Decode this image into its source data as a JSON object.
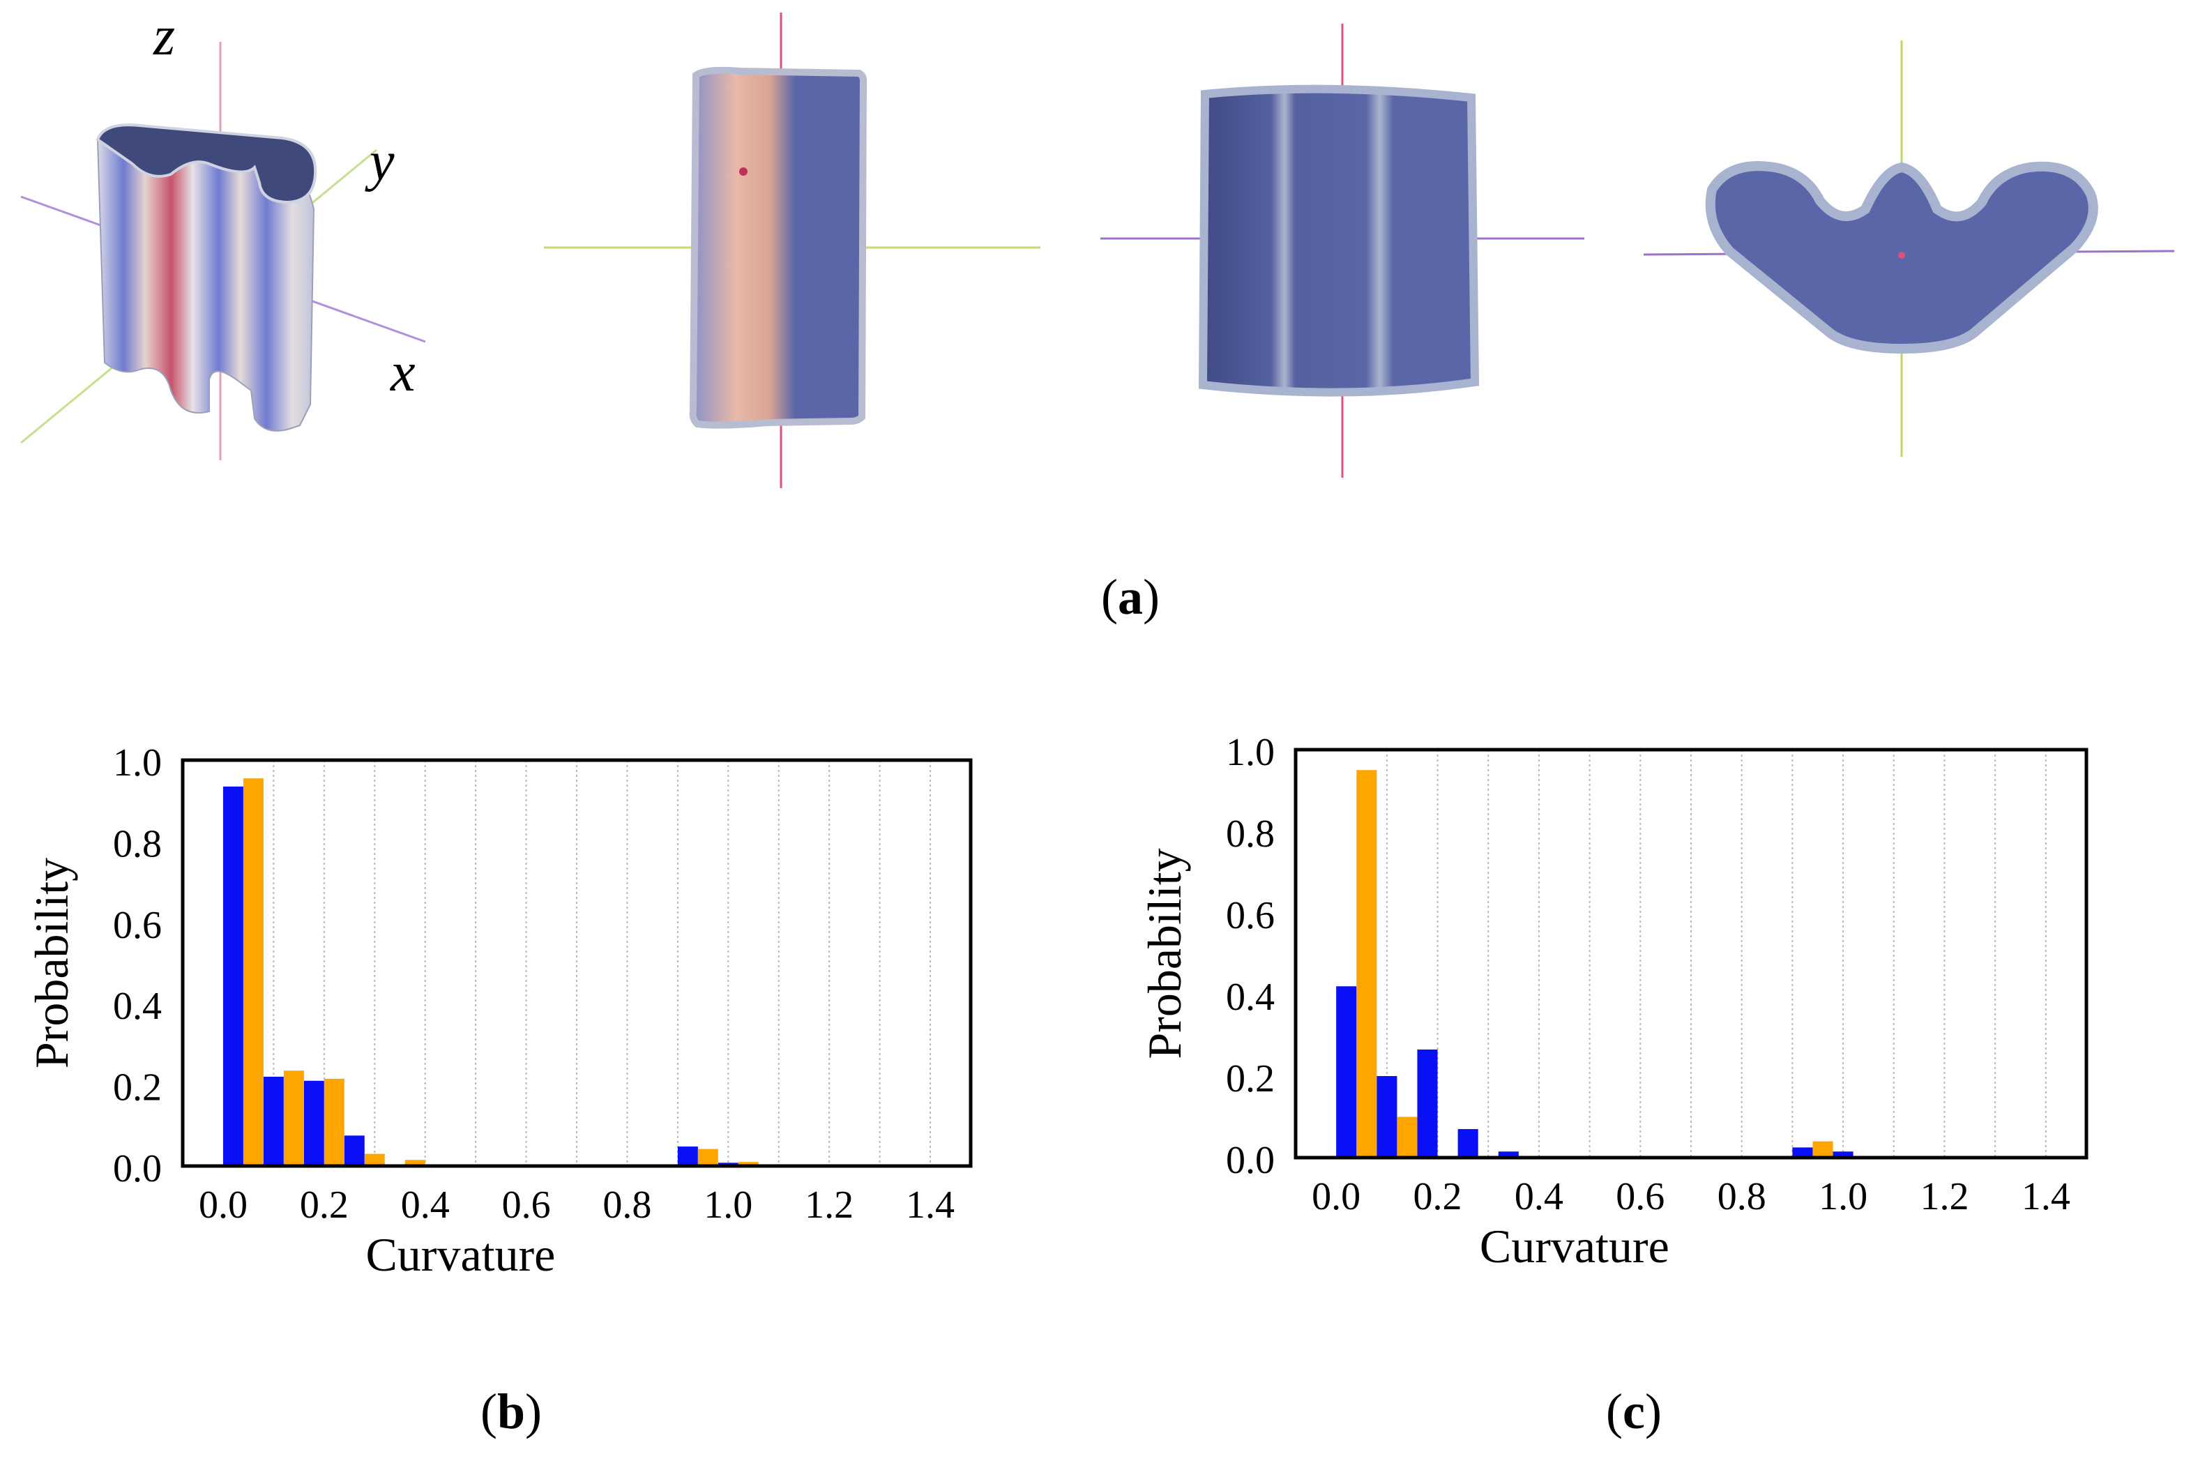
{
  "panel_a": {
    "label": "a",
    "axis_labels": {
      "z": "z",
      "y": "y",
      "x": "x"
    },
    "colors": {
      "surface_blue": "#5b66a8",
      "edge": "#a8b4cf",
      "stripe_red": "#c0305a",
      "axis_red": "#e0507a",
      "axis_green": "#b8d860",
      "axis_purple": "#a070d0"
    }
  },
  "panel_b_label": "b",
  "panel_c_label": "c",
  "chart_data": [
    {
      "type": "bar",
      "xlabel": "Curvature",
      "ylabel": "Probability",
      "xlim": [
        -0.08,
        1.48
      ],
      "ylim": [
        0,
        1.0
      ],
      "xticks": [
        "0.0",
        "0.2",
        "0.4",
        "0.6",
        "0.8",
        "1.0",
        "1.2",
        "1.4"
      ],
      "yticks": [
        "0.0",
        "0.2",
        "0.4",
        "0.6",
        "0.8",
        "1.0"
      ],
      "grid": "vertical dotted",
      "bin_width": 0.04,
      "series": [
        {
          "color": "#0a10f5",
          "x": [
            0.0,
            0.08,
            0.16,
            0.24,
            0.9,
            0.98
          ],
          "values": [
            0.935,
            0.22,
            0.21,
            0.075,
            0.048,
            0.008
          ]
        },
        {
          "color": "#ffa500",
          "x": [
            0.04,
            0.12,
            0.2,
            0.28,
            0.36,
            0.94,
            1.02
          ],
          "values": [
            0.955,
            0.235,
            0.215,
            0.03,
            0.015,
            0.042,
            0.01
          ]
        }
      ]
    },
    {
      "type": "bar",
      "xlabel": "Curvature",
      "ylabel": "Probability",
      "xlim": [
        -0.08,
        1.48
      ],
      "ylim": [
        0,
        1.0
      ],
      "xticks": [
        "0.0",
        "0.2",
        "0.4",
        "0.6",
        "0.8",
        "1.0",
        "1.2",
        "1.4"
      ],
      "yticks": [
        "0.0",
        "0.2",
        "0.4",
        "0.6",
        "0.8",
        "1.0"
      ],
      "grid": "vertical dotted",
      "bin_width": 0.04,
      "series": [
        {
          "color": "#0a10f5",
          "x": [
            0.0,
            0.08,
            0.16,
            0.24,
            0.32,
            0.9,
            0.98
          ],
          "values": [
            0.42,
            0.2,
            0.265,
            0.07,
            0.015,
            0.025,
            0.015
          ]
        },
        {
          "color": "#ffa500",
          "x": [
            0.04,
            0.12,
            0.94
          ],
          "values": [
            0.95,
            0.1,
            0.04
          ]
        }
      ]
    }
  ]
}
